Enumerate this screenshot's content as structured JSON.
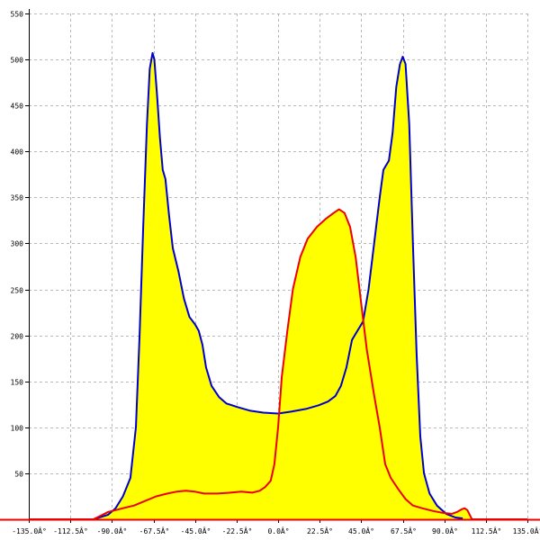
{
  "chart_data": {
    "type": "line",
    "title": "",
    "xlabel": "",
    "ylabel": "",
    "xlim": [
      -135,
      135
    ],
    "ylim": [
      0,
      550
    ],
    "grid": true,
    "legend": "none",
    "x_ticks": [
      {
        "value": -135,
        "label": "-135.0Â°"
      },
      {
        "value": -112.5,
        "label": "-112.5Â°"
      },
      {
        "value": -90,
        "label": "-90.0Â°"
      },
      {
        "value": -67.5,
        "label": "-67.5Â°"
      },
      {
        "value": -45,
        "label": "-45.0Â°"
      },
      {
        "value": -22.5,
        "label": "-22.5Â°"
      },
      {
        "value": 0,
        "label": "0.0Â°"
      },
      {
        "value": 22.5,
        "label": "22.5Â°"
      },
      {
        "value": 45,
        "label": "45.0Â°"
      },
      {
        "value": 67.5,
        "label": "67.5Â°"
      },
      {
        "value": 90,
        "label": "90.0Â°"
      },
      {
        "value": 112.5,
        "label": "112.5Â°"
      },
      {
        "value": 135,
        "label": "135.0Â°"
      }
    ],
    "y_ticks": [
      {
        "value": 50,
        "label": "50"
      },
      {
        "value": 100,
        "label": "100"
      },
      {
        "value": 150,
        "label": "150"
      },
      {
        "value": 200,
        "label": "200"
      },
      {
        "value": 250,
        "label": "250"
      },
      {
        "value": 300,
        "label": "300"
      },
      {
        "value": 350,
        "label": "350"
      },
      {
        "value": 400,
        "label": "400"
      },
      {
        "value": 450,
        "label": "450"
      },
      {
        "value": 500,
        "label": "500"
      },
      {
        "value": 550,
        "label": "550"
      }
    ],
    "fill_color": "#ffff00",
    "series": [
      {
        "color": "#0000cc",
        "points": [
          [
            -100,
            0
          ],
          [
            -92,
            5
          ],
          [
            -88,
            12
          ],
          [
            -84,
            25
          ],
          [
            -80,
            45
          ],
          [
            -77,
            100
          ],
          [
            -75,
            200
          ],
          [
            -73,
            320
          ],
          [
            -71,
            430
          ],
          [
            -69.5,
            490
          ],
          [
            -68,
            507
          ],
          [
            -67,
            500
          ],
          [
            -65.5,
            460
          ],
          [
            -64,
            415
          ],
          [
            -62.5,
            380
          ],
          [
            -61,
            370
          ],
          [
            -59,
            330
          ],
          [
            -57,
            295
          ],
          [
            -54,
            270
          ],
          [
            -51,
            240
          ],
          [
            -48,
            220
          ],
          [
            -45,
            212
          ],
          [
            -43,
            205
          ],
          [
            -41,
            190
          ],
          [
            -39,
            165
          ],
          [
            -36,
            145
          ],
          [
            -32,
            133
          ],
          [
            -28,
            126
          ],
          [
            -22,
            122
          ],
          [
            -15,
            118
          ],
          [
            -8,
            116
          ],
          [
            0,
            115
          ],
          [
            7,
            117
          ],
          [
            15,
            120
          ],
          [
            22,
            124
          ],
          [
            27,
            128
          ],
          [
            31,
            134
          ],
          [
            34,
            145
          ],
          [
            37,
            165
          ],
          [
            40,
            195
          ],
          [
            43,
            205
          ],
          [
            46,
            215
          ],
          [
            49,
            250
          ],
          [
            52,
            300
          ],
          [
            55,
            350
          ],
          [
            57,
            380
          ],
          [
            58.5,
            385
          ],
          [
            60,
            390
          ],
          [
            62,
            420
          ],
          [
            64,
            470
          ],
          [
            66,
            495
          ],
          [
            67.5,
            503
          ],
          [
            69,
            495
          ],
          [
            71,
            430
          ],
          [
            73,
            300
          ],
          [
            75,
            180
          ],
          [
            77,
            90
          ],
          [
            79,
            50
          ],
          [
            82,
            28
          ],
          [
            86,
            15
          ],
          [
            91,
            6
          ],
          [
            96,
            2
          ],
          [
            100,
            1
          ]
        ]
      },
      {
        "color": "#ee0000",
        "points": [
          [
            -135,
            0
          ],
          [
            -100,
            0
          ],
          [
            -95,
            5
          ],
          [
            -92,
            8
          ],
          [
            -88,
            10
          ],
          [
            -84,
            12
          ],
          [
            -78,
            15
          ],
          [
            -72,
            20
          ],
          [
            -66,
            25
          ],
          [
            -60,
            28
          ],
          [
            -55,
            30
          ],
          [
            -50,
            31
          ],
          [
            -45,
            30
          ],
          [
            -40,
            28
          ],
          [
            -33,
            28
          ],
          [
            -26,
            29
          ],
          [
            -20,
            30
          ],
          [
            -14,
            29
          ],
          [
            -10,
            31
          ],
          [
            -7,
            35
          ],
          [
            -4,
            42
          ],
          [
            -2,
            60
          ],
          [
            0,
            100
          ],
          [
            2,
            155
          ],
          [
            5,
            205
          ],
          [
            8,
            250
          ],
          [
            12,
            285
          ],
          [
            16,
            305
          ],
          [
            21,
            318
          ],
          [
            26,
            327
          ],
          [
            30,
            333
          ],
          [
            33,
            337
          ],
          [
            36,
            333
          ],
          [
            39,
            318
          ],
          [
            42,
            285
          ],
          [
            45,
            235
          ],
          [
            48,
            185
          ],
          [
            52,
            135
          ],
          [
            55,
            100
          ],
          [
            58,
            60
          ],
          [
            61,
            45
          ],
          [
            65,
            33
          ],
          [
            69,
            22
          ],
          [
            73,
            15
          ],
          [
            78,
            12
          ],
          [
            84,
            9
          ],
          [
            89,
            7
          ],
          [
            94,
            6
          ],
          [
            97,
            8
          ],
          [
            99.5,
            11
          ],
          [
            101,
            12
          ],
          [
            102.5,
            10
          ],
          [
            104,
            4
          ],
          [
            105,
            0
          ],
          [
            135,
            0
          ]
        ]
      }
    ]
  }
}
